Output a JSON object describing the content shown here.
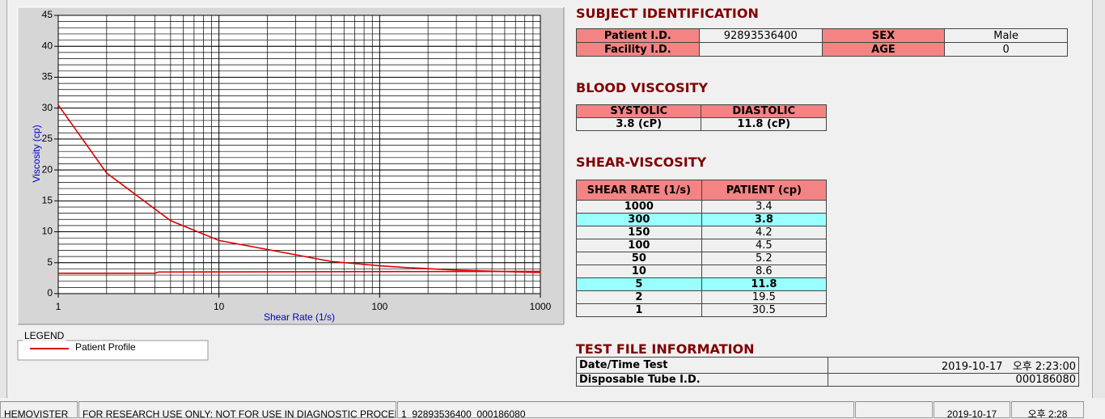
{
  "chart_data": {
    "type": "line",
    "x_label": "Shear Rate (1/s)",
    "y_label": "Viscosity (cp)",
    "xscale": "log",
    "xlim": [
      1,
      1000
    ],
    "xticks": [
      1,
      10,
      100,
      1000
    ],
    "ylim": [
      0,
      45
    ],
    "yticks": [
      0,
      5,
      10,
      15,
      20,
      25,
      30,
      35,
      40,
      45
    ],
    "grid": true,
    "legend_title": "LEGEND",
    "series": [
      {
        "name": "Patient Profile",
        "color": "#dd0000",
        "x": [
          1,
          2,
          5,
          10,
          50,
          100,
          150,
          300,
          1000
        ],
        "values": [
          30.5,
          19.5,
          11.8,
          8.6,
          5.2,
          4.5,
          4.2,
          3.8,
          3.4
        ]
      },
      {
        "color": "#dd0000",
        "x": [
          1,
          4,
          4.2,
          1000
        ],
        "values": [
          3.3,
          3.3,
          3.5,
          3.6
        ]
      }
    ]
  },
  "subject": {
    "title": "SUBJECT IDENTIFICATION",
    "rows": [
      [
        "Patient I.D.",
        "92893536400",
        "SEX",
        "Male"
      ],
      [
        "Facility I.D.",
        null,
        "AGE",
        "0"
      ]
    ]
  },
  "blood": {
    "title": "BLOOD VISCOSITY",
    "headers": [
      "SYSTOLIC",
      "DIASTOLIC"
    ],
    "values": [
      "3.8 (cP)",
      "11.8 (cP)"
    ]
  },
  "shear": {
    "title": "SHEAR-VISCOSITY",
    "headers": [
      "SHEAR RATE (1/s)",
      "PATIENT (cp)"
    ],
    "rows": [
      [
        "1000",
        "3.4"
      ],
      [
        "300",
        "3.8"
      ],
      [
        "150",
        "4.2"
      ],
      [
        "100",
        "4.5"
      ],
      [
        "50",
        "5.2"
      ],
      [
        "10",
        "8.6"
      ],
      [
        "5",
        "11.8"
      ],
      [
        "2",
        "19.5"
      ],
      [
        "1",
        "30.5"
      ]
    ],
    "highlight_rows": [
      1,
      6
    ]
  },
  "test_file": {
    "title": "TEST FILE INFORMATION",
    "rows": [
      [
        "Date/Time Test",
        "2019-10-17   오후 2:23:00"
      ],
      [
        "Disposable Tube I.D.",
        "000186080"
      ]
    ]
  },
  "status_bar": [
    "HEMOVISTER",
    "FOR RESEARCH USE ONLY: NOT FOR USE IN DIAGNOSTIC PROCEDURES",
    "1  92893536400  000186080",
    null,
    "2019-10-17",
    "오후 2:28"
  ]
}
